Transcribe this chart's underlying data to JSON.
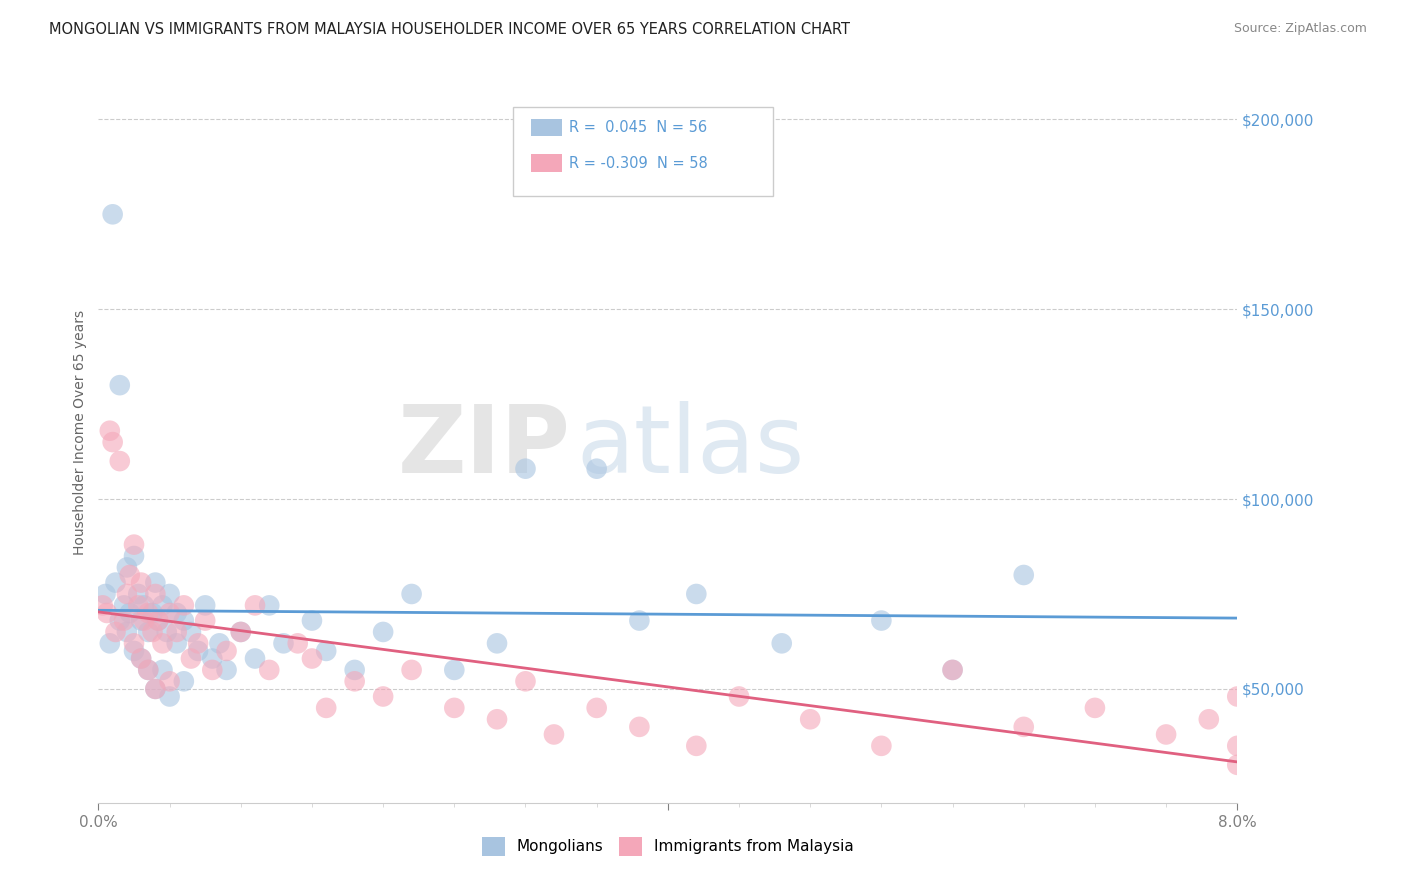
{
  "title": "MONGOLIAN VS IMMIGRANTS FROM MALAYSIA HOUSEHOLDER INCOME OVER 65 YEARS CORRELATION CHART",
  "source": "Source: ZipAtlas.com",
  "ylabel": "Householder Income Over 65 years",
  "xlim": [
    0.0,
    8.0
  ],
  "ylim": [
    20000,
    215000
  ],
  "ylabel_ticks": [
    "$50,000",
    "$100,000",
    "$150,000",
    "$200,000"
  ],
  "ylabel_vals": [
    50000,
    100000,
    150000,
    200000
  ],
  "color_blue": "#a8c4e0",
  "color_pink": "#f4a7b9",
  "line_blue": "#5b9bd5",
  "line_pink": "#e06080",
  "watermark_zip": "ZIP",
  "watermark_atlas": "atlas",
  "mongolians_x": [
    0.05,
    0.08,
    0.1,
    0.12,
    0.15,
    0.15,
    0.18,
    0.2,
    0.2,
    0.22,
    0.25,
    0.25,
    0.28,
    0.3,
    0.3,
    0.32,
    0.35,
    0.35,
    0.38,
    0.4,
    0.4,
    0.42,
    0.45,
    0.45,
    0.48,
    0.5,
    0.5,
    0.55,
    0.55,
    0.6,
    0.6,
    0.65,
    0.7,
    0.75,
    0.8,
    0.85,
    0.9,
    1.0,
    1.1,
    1.2,
    1.3,
    1.5,
    1.6,
    1.8,
    2.0,
    2.2,
    2.5,
    2.8,
    3.0,
    3.5,
    3.8,
    4.2,
    4.8,
    5.5,
    6.0,
    6.5
  ],
  "mongolians_y": [
    75000,
    62000,
    175000,
    78000,
    130000,
    68000,
    72000,
    82000,
    65000,
    70000,
    85000,
    60000,
    75000,
    68000,
    58000,
    72000,
    65000,
    55000,
    70000,
    78000,
    50000,
    68000,
    72000,
    55000,
    65000,
    75000,
    48000,
    70000,
    62000,
    68000,
    52000,
    65000,
    60000,
    72000,
    58000,
    62000,
    55000,
    65000,
    58000,
    72000,
    62000,
    68000,
    60000,
    55000,
    65000,
    75000,
    55000,
    62000,
    108000,
    108000,
    68000,
    75000,
    62000,
    68000,
    55000,
    80000
  ],
  "malaysia_x": [
    0.03,
    0.06,
    0.08,
    0.1,
    0.12,
    0.15,
    0.18,
    0.2,
    0.22,
    0.25,
    0.25,
    0.28,
    0.3,
    0.3,
    0.32,
    0.35,
    0.35,
    0.38,
    0.4,
    0.4,
    0.42,
    0.45,
    0.5,
    0.5,
    0.55,
    0.6,
    0.65,
    0.7,
    0.75,
    0.8,
    0.9,
    1.0,
    1.1,
    1.2,
    1.4,
    1.5,
    1.6,
    1.8,
    2.0,
    2.2,
    2.5,
    2.8,
    3.0,
    3.2,
    3.5,
    3.8,
    4.2,
    4.5,
    5.0,
    5.5,
    6.0,
    6.5,
    7.0,
    7.5,
    7.8,
    8.0,
    8.0,
    8.0
  ],
  "malaysia_y": [
    72000,
    70000,
    118000,
    115000,
    65000,
    110000,
    68000,
    75000,
    80000,
    88000,
    62000,
    72000,
    78000,
    58000,
    68000,
    70000,
    55000,
    65000,
    75000,
    50000,
    68000,
    62000,
    70000,
    52000,
    65000,
    72000,
    58000,
    62000,
    68000,
    55000,
    60000,
    65000,
    72000,
    55000,
    62000,
    58000,
    45000,
    52000,
    48000,
    55000,
    45000,
    42000,
    52000,
    38000,
    45000,
    40000,
    35000,
    48000,
    42000,
    35000,
    55000,
    40000,
    45000,
    38000,
    42000,
    48000,
    35000,
    30000
  ]
}
